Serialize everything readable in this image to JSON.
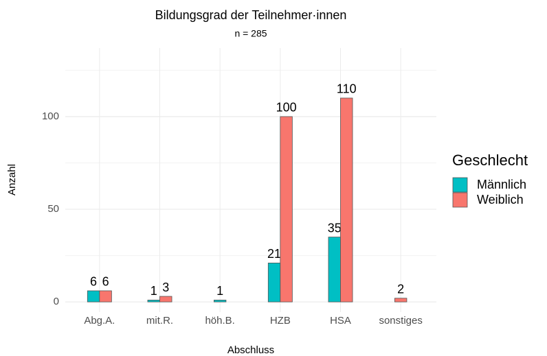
{
  "chart_data": {
    "type": "bar",
    "title": "Bildungsgrad der Teilnehmer·innen",
    "subtitle": "n = 285",
    "x_label": "Abschluss",
    "y_label": "Anzahl",
    "categories": [
      "Abg.A.",
      "mit.R.",
      "höh.B.",
      "HZB",
      "HSA",
      "sonstiges"
    ],
    "series": [
      {
        "name": "Männlich",
        "color": "#00BFC4",
        "values": [
          6,
          1,
          1,
          21,
          35,
          null
        ]
      },
      {
        "name": "Weiblich",
        "color": "#F8766D",
        "values": [
          6,
          3,
          null,
          100,
          110,
          2
        ]
      }
    ],
    "ylim": [
      -5.5,
      137
    ],
    "yticks": [
      0,
      50,
      100
    ],
    "yticks_minor": [
      25,
      75,
      125
    ],
    "grid": true,
    "legend_title": "Geschlecht",
    "legend": "right"
  }
}
